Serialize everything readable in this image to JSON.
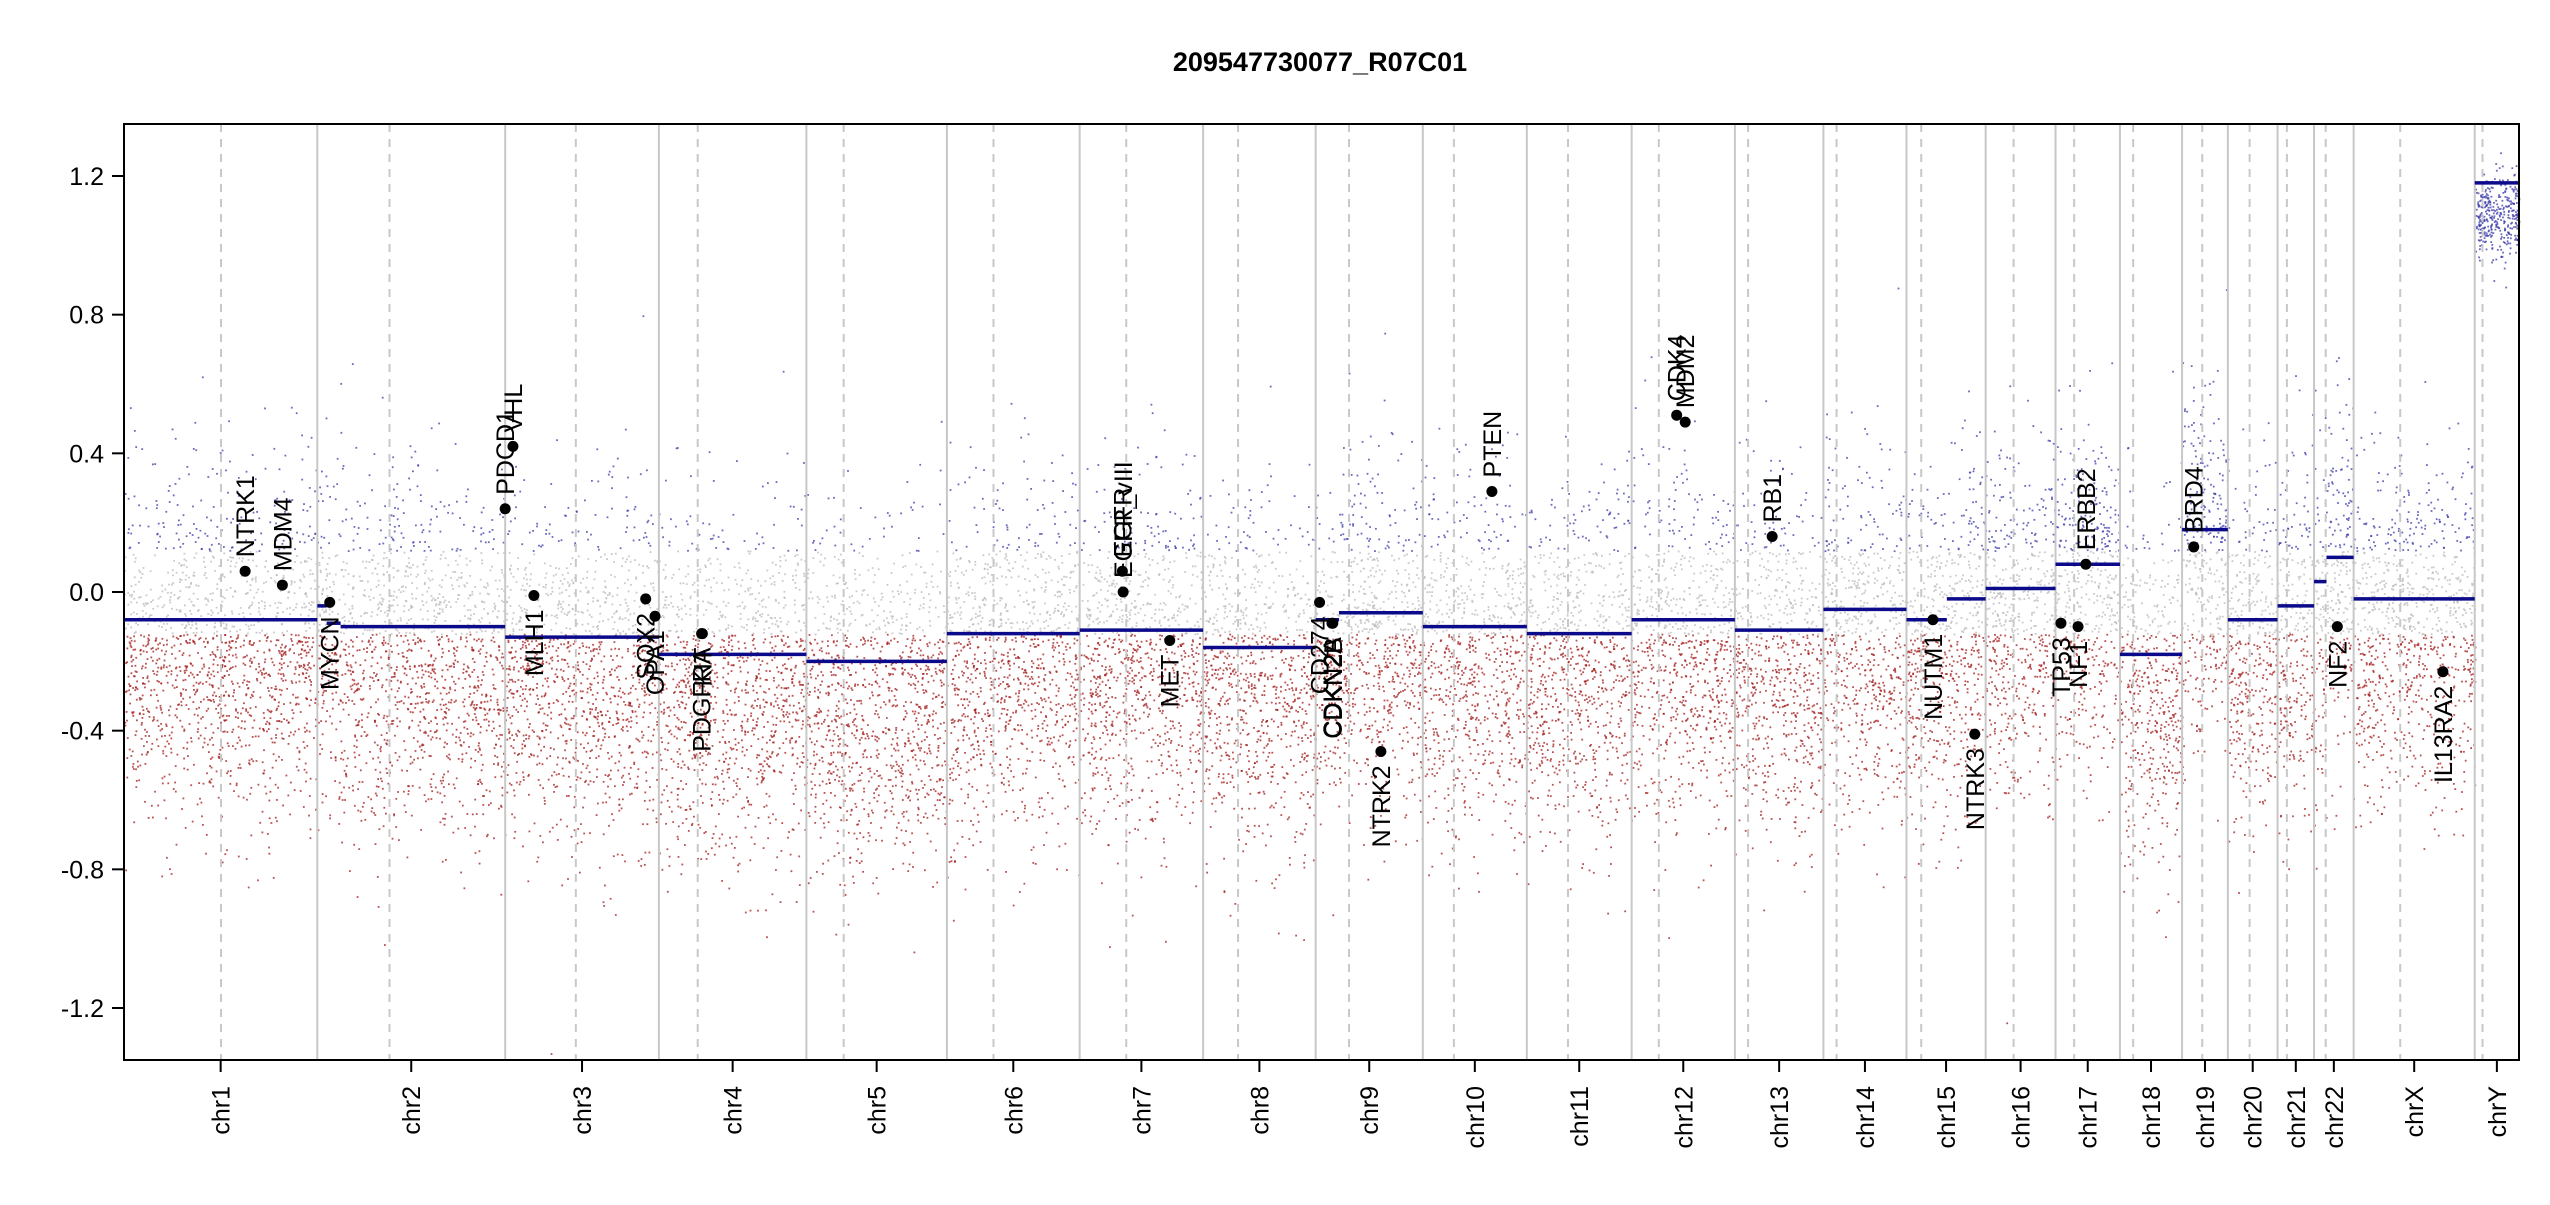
{
  "chart_data": {
    "type": "scatter",
    "title": "209547730077_R07C01",
    "ylim": [
      -1.35,
      1.35
    ],
    "y_ticks": [
      -1.2,
      -0.8,
      -0.4,
      0.0,
      0.4,
      0.8,
      1.2
    ],
    "y_tick_labels": [
      "-1.2",
      "-0.8",
      "-0.4",
      "0.0",
      "0.4",
      "0.8",
      "1.2"
    ],
    "grid": false,
    "colors": {
      "segment": "#0a0a8a",
      "gain": "#3a3aa8",
      "neutral": "#b8b8b8",
      "loss": "#a11a1a",
      "divider": "#c8c8c8",
      "centromere": "#c8c8c8",
      "gene": "#000000"
    },
    "chromosomes": [
      {
        "label": "chr1",
        "size": 249,
        "centromere": 125,
        "segments": [
          {
            "start": 0,
            "end": 249,
            "value": -0.08
          }
        ]
      },
      {
        "label": "chr2",
        "size": 242,
        "centromere": 93,
        "segments": [
          {
            "start": 0,
            "end": 12,
            "value": -0.04
          },
          {
            "start": 12,
            "end": 30,
            "value": -0.09
          },
          {
            "start": 30,
            "end": 242,
            "value": -0.1
          }
        ]
      },
      {
        "label": "chr3",
        "size": 198,
        "centromere": 91,
        "segments": [
          {
            "start": 0,
            "end": 198,
            "value": -0.13
          }
        ]
      },
      {
        "label": "chr4",
        "size": 190,
        "centromere": 50,
        "segments": [
          {
            "start": 0,
            "end": 190,
            "value": -0.18
          }
        ]
      },
      {
        "label": "chr5",
        "size": 181,
        "centromere": 48,
        "segments": [
          {
            "start": 0,
            "end": 181,
            "value": -0.2
          }
        ]
      },
      {
        "label": "chr6",
        "size": 171,
        "centromere": 60,
        "segments": [
          {
            "start": 0,
            "end": 171,
            "value": -0.12
          }
        ]
      },
      {
        "label": "chr7",
        "size": 159,
        "centromere": 60,
        "segments": [
          {
            "start": 0,
            "end": 159,
            "value": -0.11
          }
        ]
      },
      {
        "label": "chr8",
        "size": 145,
        "centromere": 45,
        "segments": [
          {
            "start": 0,
            "end": 145,
            "value": -0.16
          }
        ]
      },
      {
        "label": "chr9",
        "size": 138,
        "centromere": 43,
        "segments": [
          {
            "start": 0,
            "end": 30,
            "value": -0.08
          },
          {
            "start": 30,
            "end": 138,
            "value": -0.06
          }
        ]
      },
      {
        "label": "chr10",
        "size": 134,
        "centromere": 40,
        "segments": [
          {
            "start": 0,
            "end": 134,
            "value": -0.1
          }
        ]
      },
      {
        "label": "chr11",
        "size": 135,
        "centromere": 53,
        "segments": [
          {
            "start": 0,
            "end": 135,
            "value": -0.12
          }
        ]
      },
      {
        "label": "chr12",
        "size": 133,
        "centromere": 35,
        "segments": [
          {
            "start": 0,
            "end": 133,
            "value": -0.08
          }
        ]
      },
      {
        "label": "chr13",
        "size": 114,
        "centromere": 17,
        "segments": [
          {
            "start": 0,
            "end": 114,
            "value": -0.11
          }
        ]
      },
      {
        "label": "chr14",
        "size": 107,
        "centromere": 17,
        "segments": [
          {
            "start": 0,
            "end": 107,
            "value": -0.05
          }
        ]
      },
      {
        "label": "chr15",
        "size": 102,
        "centromere": 19,
        "segments": [
          {
            "start": 0,
            "end": 52,
            "value": -0.08
          },
          {
            "start": 52,
            "end": 102,
            "value": -0.02
          }
        ]
      },
      {
        "label": "chr16",
        "size": 90,
        "centromere": 36,
        "segments": [
          {
            "start": 0,
            "end": 90,
            "value": 0.01
          }
        ]
      },
      {
        "label": "chr17",
        "size": 83,
        "centromere": 24,
        "segments": [
          {
            "start": 0,
            "end": 83,
            "value": 0.08
          }
        ]
      },
      {
        "label": "chr18",
        "size": 80,
        "centromere": 17,
        "segments": [
          {
            "start": 0,
            "end": 80,
            "value": -0.18
          }
        ]
      },
      {
        "label": "chr19",
        "size": 59,
        "centromere": 26,
        "segments": [
          {
            "start": 0,
            "end": 59,
            "value": 0.18
          }
        ]
      },
      {
        "label": "chr20",
        "size": 64,
        "centromere": 28,
        "segments": [
          {
            "start": 0,
            "end": 64,
            "value": -0.08
          }
        ]
      },
      {
        "label": "chr21",
        "size": 47,
        "centromere": 12,
        "segments": [
          {
            "start": 0,
            "end": 47,
            "value": -0.04
          }
        ]
      },
      {
        "label": "chr22",
        "size": 51,
        "centromere": 15,
        "segments": [
          {
            "start": 0,
            "end": 16,
            "value": 0.03
          },
          {
            "start": 16,
            "end": 51,
            "value": 0.1
          }
        ]
      },
      {
        "label": "chrX",
        "size": 156,
        "centromere": 60,
        "segments": [
          {
            "start": 0,
            "end": 156,
            "value": -0.02
          }
        ]
      },
      {
        "label": "chrY",
        "size": 57,
        "centromere": 10,
        "segments": [
          {
            "start": 0,
            "end": 57,
            "value": 1.18
          }
        ]
      }
    ],
    "genes": [
      {
        "name": "NTRK1",
        "chrom": "chr1",
        "pos": 156,
        "value": 0.06
      },
      {
        "name": "MDM4",
        "chrom": "chr1",
        "pos": 204,
        "value": 0.02
      },
      {
        "name": "MYCN",
        "chrom": "chr2",
        "pos": 16,
        "value": -0.03
      },
      {
        "name": "PDCD1",
        "chrom": "chr2",
        "pos": 242,
        "value": 0.24
      },
      {
        "name": "VHL",
        "chrom": "chr3",
        "pos": 10,
        "value": 0.42
      },
      {
        "name": "MLH1",
        "chrom": "chr3",
        "pos": 37,
        "value": -0.01
      },
      {
        "name": "SOX2",
        "chrom": "chr3",
        "pos": 181,
        "value": -0.02
      },
      {
        "name": "OPA1",
        "chrom": "chr3",
        "pos": 193,
        "value": -0.07
      },
      {
        "name": "PDGFRA",
        "chrom": "chr4",
        "pos": 55,
        "value": -0.12
      },
      {
        "name": "KIT",
        "chrom": "chr4",
        "pos": 56,
        "value": -0.12
      },
      {
        "name": "EGFR",
        "chrom": "chr7",
        "pos": 55,
        "value": 0.06
      },
      {
        "name": "EGFR_vIII",
        "chrom": "chr7",
        "pos": 56,
        "value": 0.0
      },
      {
        "name": "MET",
        "chrom": "chr7",
        "pos": 116,
        "value": -0.14
      },
      {
        "name": "CD274",
        "chrom": "chr9",
        "pos": 5,
        "value": -0.03
      },
      {
        "name": "CDKN2A",
        "chrom": "chr9",
        "pos": 21,
        "value": -0.09
      },
      {
        "name": "CDKN2B",
        "chrom": "chr9",
        "pos": 22,
        "value": -0.09
      },
      {
        "name": "NTRK2",
        "chrom": "chr9",
        "pos": 84,
        "value": -0.46
      },
      {
        "name": "PTEN",
        "chrom": "chr10",
        "pos": 89,
        "value": 0.29
      },
      {
        "name": "CDK4",
        "chrom": "chr12",
        "pos": 58,
        "value": 0.51
      },
      {
        "name": "MDM2",
        "chrom": "chr12",
        "pos": 69,
        "value": 0.49
      },
      {
        "name": "RB1",
        "chrom": "chr13",
        "pos": 48,
        "value": 0.16
      },
      {
        "name": "NUTM1",
        "chrom": "chr15",
        "pos": 34,
        "value": -0.08
      },
      {
        "name": "NTRK3",
        "chrom": "chr15",
        "pos": 88,
        "value": -0.41
      },
      {
        "name": "TP53",
        "chrom": "chr17",
        "pos": 7,
        "value": -0.09
      },
      {
        "name": "NF1",
        "chrom": "chr17",
        "pos": 29,
        "value": -0.1
      },
      {
        "name": "ERBB2",
        "chrom": "chr17",
        "pos": 39,
        "value": 0.08
      },
      {
        "name": "BRD4",
        "chrom": "chr19",
        "pos": 15,
        "value": 0.13
      },
      {
        "name": "NF2",
        "chrom": "chr22",
        "pos": 30,
        "value": -0.1
      },
      {
        "name": "IL13RA2",
        "chrom": "chrX",
        "pos": 115,
        "value": -0.23
      }
    ]
  }
}
